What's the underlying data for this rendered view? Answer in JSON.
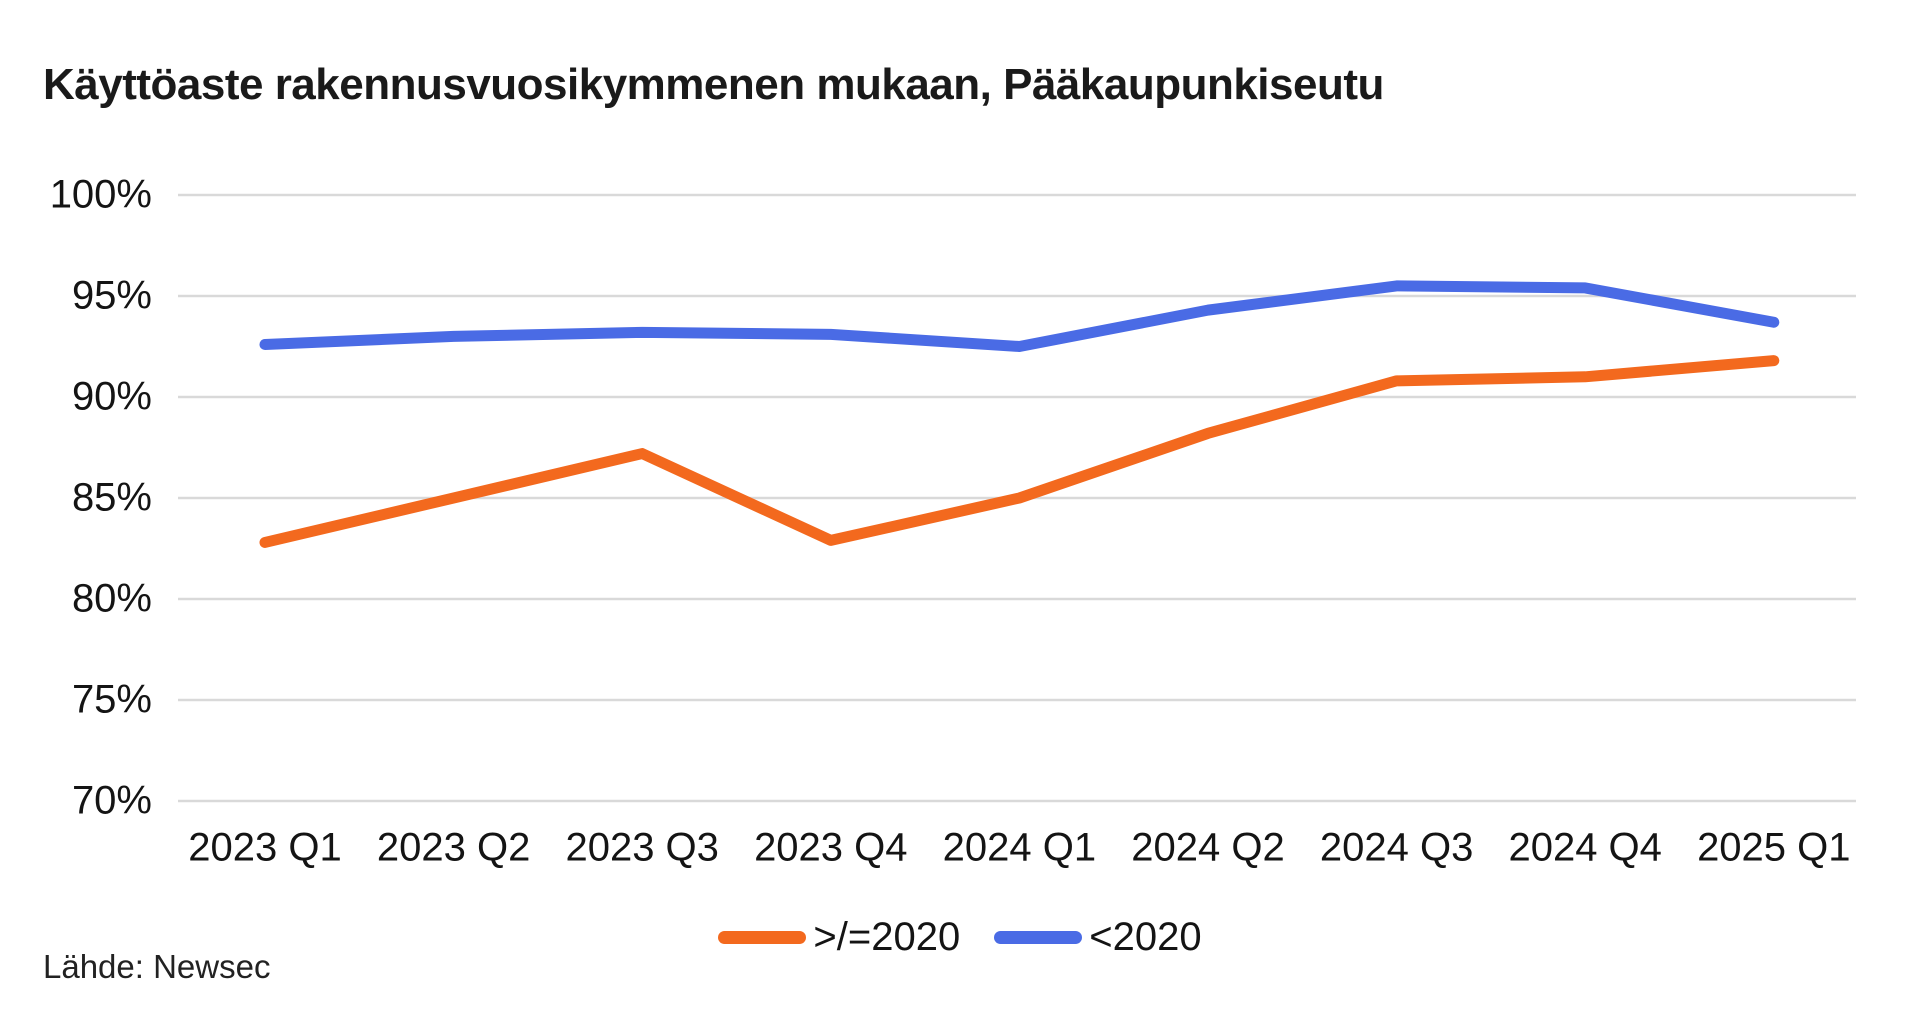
{
  "title": "Käyttöaste rakennusvuosikymmenen mukaan, Pääkaupunkiseutu",
  "source": "Lähde: Newsec",
  "colors": {
    "gridline": "#d9d9d9",
    "text": "#141414",
    "orange": "#f3691e",
    "blue": "#4a6be5"
  },
  "chart_data": {
    "type": "line",
    "title": "Käyttöaste rakennusvuosikymmenen mukaan, Pääkaupunkiseutu",
    "categories": [
      "2023 Q1",
      "2023 Q2",
      "2023 Q3",
      "2023 Q4",
      "2024 Q1",
      "2024 Q2",
      "2024 Q3",
      "2024 Q4",
      "2025 Q1"
    ],
    "series": [
      {
        "name": ">/=2020",
        "color": "#f3691e",
        "values": [
          82.8,
          85.0,
          87.2,
          82.9,
          85.0,
          88.2,
          90.8,
          91.0,
          91.8
        ]
      },
      {
        "name": "<2020",
        "color": "#4a6be5",
        "values": [
          92.6,
          93.0,
          93.2,
          93.1,
          92.5,
          94.3,
          95.5,
          95.4,
          93.7
        ]
      }
    ],
    "xlabel": "",
    "ylabel": "",
    "ylim": [
      70,
      100
    ],
    "ytick_values": [
      100,
      95,
      90,
      85,
      80,
      75,
      70
    ],
    "ytick_labels": [
      "100%",
      "95%",
      "90%",
      "85%",
      "80%",
      "75%",
      "70%"
    ],
    "grid": "horizontal",
    "legend_position": "bottom-center",
    "unit": "%"
  }
}
